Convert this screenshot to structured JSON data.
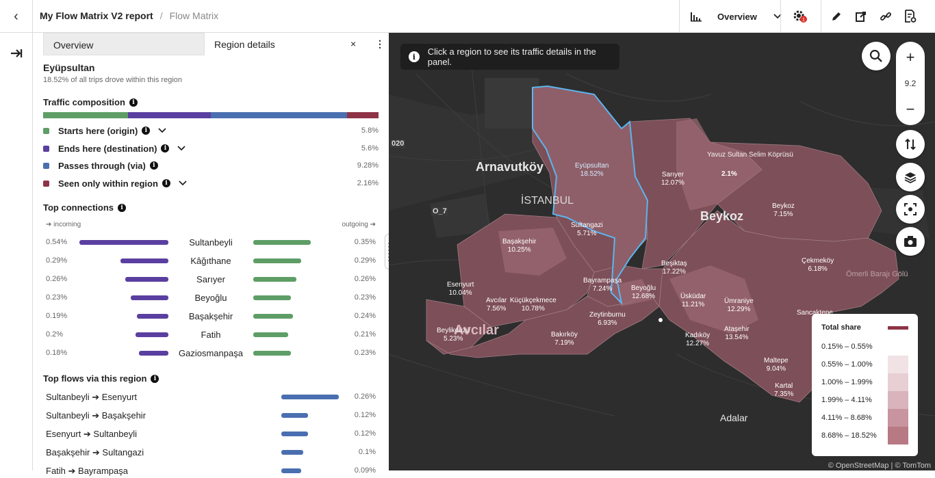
{
  "header": {
    "title": "My Flow Matrix V2 report",
    "separator": "/",
    "page": "Flow Matrix",
    "view_select": "Overview"
  },
  "panel": {
    "tabs": [
      {
        "label": "Overview"
      },
      {
        "label": "Region details"
      }
    ],
    "close": "×",
    "more": "⋮",
    "region_name": "Eyüpsultan",
    "region_sub": "18.52% of all trips drove within this region",
    "composition_title": "Traffic composition",
    "composition": [
      {
        "label": "Starts here (origin)",
        "pct": "5.8%",
        "color": "#5e9e66",
        "share": 5.8,
        "expandable": true
      },
      {
        "label": "Ends here (destination)",
        "pct": "5.6%",
        "color": "#5b3fa0",
        "share": 5.6,
        "expandable": true
      },
      {
        "label": "Passes through (via)",
        "pct": "9.28%",
        "color": "#4a6fb0",
        "share": 9.28,
        "expandable": false
      },
      {
        "label": "Seen only within region",
        "pct": "2.16%",
        "color": "#8e3346",
        "share": 2.16,
        "expandable": true
      }
    ],
    "connections_title": "Top connections",
    "incoming_label": "➔ incoming",
    "outgoing_label": "outgoing ➔",
    "connections": [
      {
        "name": "Sultanbeyli",
        "in": "0.54%",
        "out": "0.35%",
        "in_v": 0.54,
        "out_v": 0.35
      },
      {
        "name": "Kâğıthane",
        "in": "0.29%",
        "out": "0.29%",
        "in_v": 0.29,
        "out_v": 0.29
      },
      {
        "name": "Sarıyer",
        "in": "0.26%",
        "out": "0.26%",
        "in_v": 0.26,
        "out_v": 0.26
      },
      {
        "name": "Beyoğlu",
        "in": "0.23%",
        "out": "0.23%",
        "in_v": 0.23,
        "out_v": 0.23
      },
      {
        "name": "Başakşehir",
        "in": "0.19%",
        "out": "0.24%",
        "in_v": 0.19,
        "out_v": 0.24
      },
      {
        "name": "Fatih",
        "in": "0.2%",
        "out": "0.21%",
        "in_v": 0.2,
        "out_v": 0.21
      },
      {
        "name": "Gaziosmanpaşa",
        "in": "0.18%",
        "out": "0.23%",
        "in_v": 0.18,
        "out_v": 0.23
      }
    ],
    "flows_title": "Top flows via this region",
    "flows": [
      {
        "name": "Sultanbeyli ➔ Esenyurt",
        "pct": "0.26%",
        "v": 0.26
      },
      {
        "name": "Sultanbeyli ➔ Başakşehir",
        "pct": "0.12%",
        "v": 0.12
      },
      {
        "name": "Esenyurt ➔ Sultanbeyli",
        "pct": "0.12%",
        "v": 0.12
      },
      {
        "name": "Başakşehir ➔ Sultangazi",
        "pct": "0.1%",
        "v": 0.1
      },
      {
        "name": "Fatih ➔ Bayrampaşa",
        "pct": "0.09%",
        "v": 0.09
      }
    ]
  },
  "map": {
    "tooltip": "Click a region to see its traffic details in the panel.",
    "zoom_level": "9.2",
    "place_labels": [
      {
        "text": "Arnavutköy"
      },
      {
        "text": "İSTANBUL"
      },
      {
        "text": "Beykoz"
      },
      {
        "text": "Avcılar"
      },
      {
        "text": "Adalar"
      },
      {
        "text": "Ömerli Barajı Gölü"
      },
      {
        "text": "Yavuz Sultan Selim Köprüsü"
      },
      {
        "text": "2.1%"
      },
      {
        "text": "020"
      },
      {
        "text": "O_7"
      }
    ],
    "regions": [
      {
        "name": "Eyüpsultan",
        "pct": "18.52%"
      },
      {
        "name": "Sarıyer",
        "pct": "12.07%"
      },
      {
        "name": "Beykoz",
        "pct": "7.15%"
      },
      {
        "name": "Sultangazi",
        "pct": "5.71%"
      },
      {
        "name": "Başakşehir",
        "pct": "10.25%"
      },
      {
        "name": "Beşiktaş",
        "pct": "17.22%"
      },
      {
        "name": "Çekmeköy",
        "pct": "6.18%"
      },
      {
        "name": "Esenyurt",
        "pct": "10.04%"
      },
      {
        "name": "Bayrampaşa",
        "pct": "7.24%"
      },
      {
        "name": "Beyoğlu",
        "pct": "12.68%"
      },
      {
        "name": "Üsküdar",
        "pct": "11.21%"
      },
      {
        "name": "Ümraniye",
        "pct": "12.29%"
      },
      {
        "name": "Avcılar",
        "pct": "7.56%"
      },
      {
        "name": "Küçükçekmece",
        "pct": "10.78%"
      },
      {
        "name": "Zeytinburnu",
        "pct": "6.93%"
      },
      {
        "name": "Sancaktepe",
        "pct": ""
      },
      {
        "name": "Beylikdüzü",
        "pct": "5.23%"
      },
      {
        "name": "Bakırköy",
        "pct": "7.19%"
      },
      {
        "name": "Kadıköy",
        "pct": "12.27%"
      },
      {
        "name": "Ataşehir",
        "pct": "13.54%"
      },
      {
        "name": "Maltepe",
        "pct": "9.04%"
      },
      {
        "name": "Kartal",
        "pct": "7.35%"
      }
    ],
    "legend": {
      "title": "Total share",
      "title_color": "#8e3346",
      "bins": [
        {
          "label": "0.15% – 0.55%",
          "color": "#ffffff"
        },
        {
          "label": "0.55% – 1.00%",
          "color": "#f1e2e5"
        },
        {
          "label": "1.00% – 1.99%",
          "color": "#e7cfd4"
        },
        {
          "label": "1.99% – 4.11%",
          "color": "#d9b4bc"
        },
        {
          "label": "4.11% – 8.68%",
          "color": "#c8949f"
        },
        {
          "label": "8.68% – 18.52%",
          "color": "#b77983"
        }
      ]
    },
    "attribution": "© OpenStreetMap | © TomTom"
  }
}
